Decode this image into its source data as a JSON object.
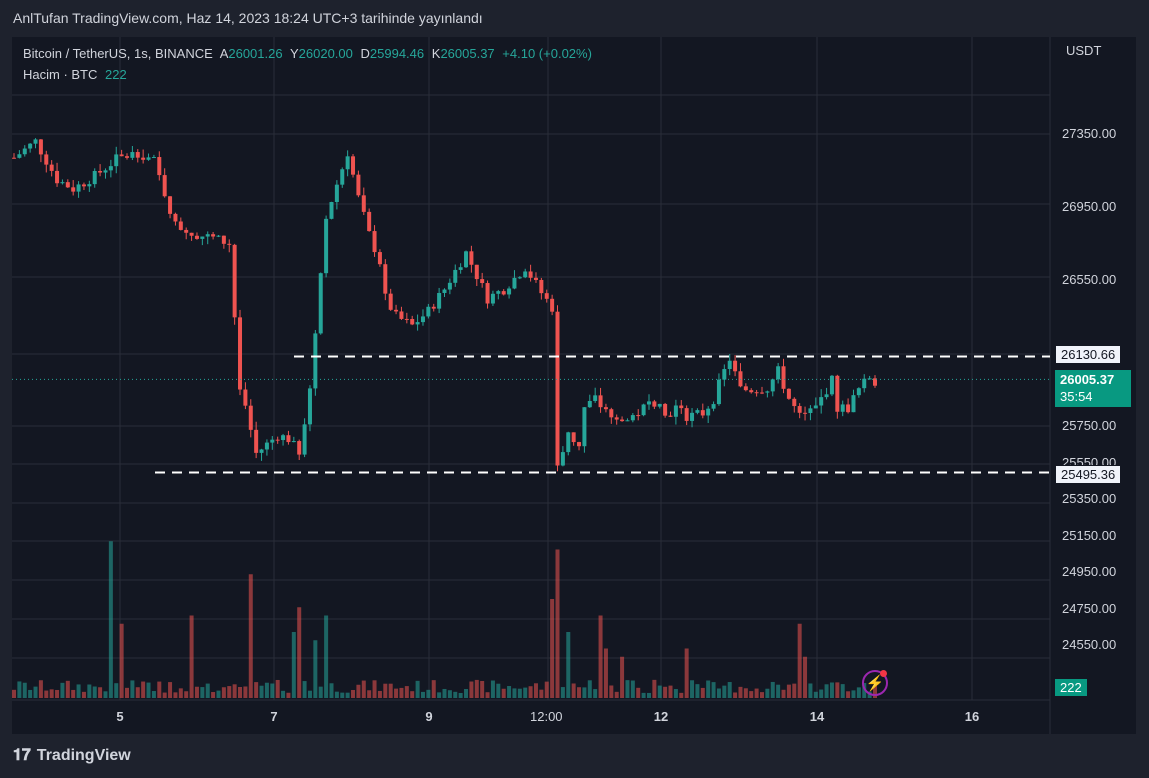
{
  "caption": "AnlTufan TradingView.com, Haz 14, 2023 18:24 UTC+3 tarihinde yayınlandı",
  "legend": {
    "symbol": "Bitcoin / TetherUS, 1s, BINANCE",
    "open_label": "A",
    "open": "26001.26",
    "high_label": "Y",
    "high": "26020.00",
    "low_label": "D",
    "low": "25994.46",
    "close_label": "K",
    "close": "26005.37",
    "change": "+4.10 (+0.02%)",
    "volume_label": "Hacim · BTC",
    "volume": "222"
  },
  "currency": "USDT",
  "price_axis": [
    "27350.00",
    "26950.00",
    "26550.00",
    "25750.00",
    "25550.00",
    "25350.00",
    "25150.00",
    "24950.00",
    "24750.00",
    "24550.00"
  ],
  "time_axis": [
    "5",
    "7",
    "9",
    "12:00",
    "12",
    "14",
    "16"
  ],
  "tags": {
    "resistance": "26130.66",
    "current": "26005.37",
    "countdown": "35:54",
    "support": "25495.36",
    "volume": "222"
  },
  "footer": {
    "brand": "TradingView"
  },
  "chart_data": {
    "type": "candlestick",
    "levels": {
      "resistance": 26130.66,
      "support": 25495.36,
      "last": 26005.37
    },
    "path": [
      [
        0,
        27220
      ],
      [
        4,
        27310
      ],
      [
        8,
        27100
      ],
      [
        11,
        27050
      ],
      [
        15,
        27120
      ],
      [
        19,
        27210
      ],
      [
        23,
        27250
      ],
      [
        26,
        27200
      ],
      [
        30,
        26850
      ],
      [
        34,
        26800
      ],
      [
        37,
        26780
      ],
      [
        40,
        26750
      ],
      [
        42,
        25950
      ],
      [
        45,
        25600
      ],
      [
        47,
        25650
      ],
      [
        49,
        25700
      ],
      [
        51,
        25680
      ],
      [
        53,
        25600
      ],
      [
        55,
        25950
      ],
      [
        58,
        26900
      ],
      [
        62,
        27250
      ],
      [
        64,
        27000
      ],
      [
        66,
        26800
      ],
      [
        68,
        26650
      ],
      [
        69,
        26450
      ],
      [
        71,
        26350
      ],
      [
        74,
        26300
      ],
      [
        77,
        26380
      ],
      [
        80,
        26500
      ],
      [
        84,
        26700
      ],
      [
        88,
        26450
      ],
      [
        91,
        26500
      ],
      [
        95,
        26620
      ],
      [
        98,
        26480
      ],
      [
        100,
        26400
      ],
      [
        101,
        25550
      ],
      [
        103,
        25700
      ],
      [
        105,
        25650
      ],
      [
        106,
        25850
      ],
      [
        108,
        25900
      ],
      [
        111,
        25780
      ],
      [
        114,
        25780
      ],
      [
        118,
        25870
      ],
      [
        120,
        25900
      ],
      [
        121,
        25800
      ],
      [
        123,
        25850
      ],
      [
        125,
        25800
      ],
      [
        128,
        25820
      ],
      [
        130,
        25900
      ],
      [
        132,
        26050
      ],
      [
        133,
        26120
      ],
      [
        135,
        25950
      ],
      [
        137,
        25950
      ],
      [
        140,
        25960
      ],
      [
        142,
        26050
      ],
      [
        144,
        25900
      ],
      [
        146,
        25800
      ],
      [
        149,
        25850
      ],
      [
        152,
        26000
      ],
      [
        153,
        25850
      ],
      [
        155,
        25850
      ],
      [
        157,
        25950
      ],
      [
        159,
        26020
      ],
      [
        160,
        25990
      ]
    ],
    "volume_spikes": [
      [
        18,
        0.95
      ],
      [
        20,
        0.45
      ],
      [
        33,
        0.5
      ],
      [
        44,
        0.75
      ],
      [
        52,
        0.4
      ],
      [
        53,
        0.55
      ],
      [
        56,
        0.35
      ],
      [
        58,
        0.5
      ],
      [
        100,
        0.6
      ],
      [
        101,
        0.9
      ],
      [
        103,
        0.4
      ],
      [
        109,
        0.5
      ],
      [
        110,
        0.3
      ],
      [
        113,
        0.25
      ],
      [
        125,
        0.3
      ],
      [
        146,
        0.45
      ],
      [
        147,
        0.25
      ]
    ],
    "x_ticks": [
      "5",
      "7",
      "9",
      "12:00",
      "12",
      "14",
      "16"
    ],
    "y_ticks": [
      27350,
      26950,
      26550,
      25750,
      25550,
      25350,
      25150,
      24950,
      24750,
      24550
    ]
  }
}
